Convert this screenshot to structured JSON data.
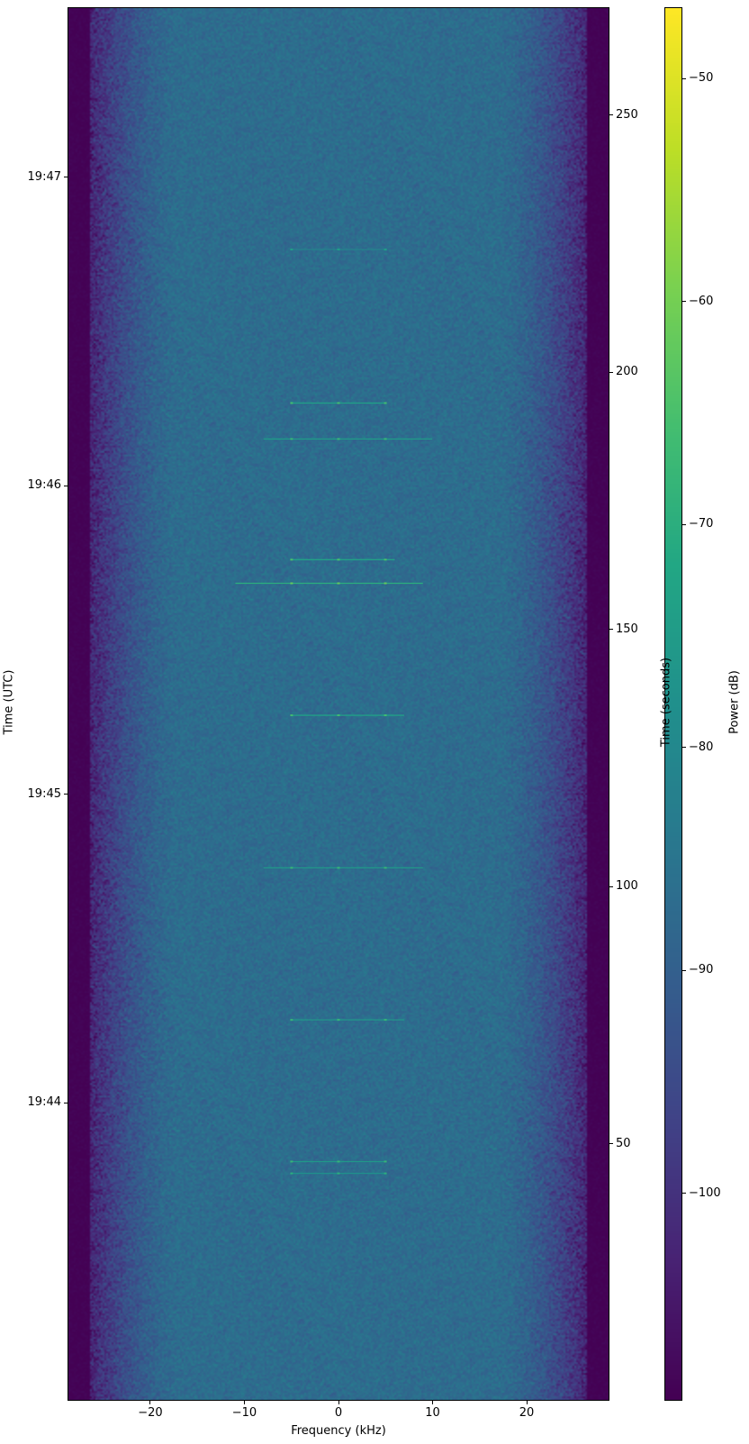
{
  "chart_data": {
    "type": "heatmap",
    "subtype": "spectrogram",
    "xlabel": "Frequency (kHz)",
    "ylabel_left": "Time (UTC)",
    "ylabel_right": "Time (seconds)",
    "colorbar_label": "Power (dB)",
    "colormap": "viridis",
    "xlim": [
      -28.8,
      28.8
    ],
    "ylim_seconds": [
      0,
      271
    ],
    "clim": [
      -109.3,
      -46.8
    ],
    "x_ticks": [
      -20,
      -10,
      0,
      10,
      20
    ],
    "x_tick_labels": [
      "−20",
      "−10",
      "0",
      "10",
      "20"
    ],
    "right_ticks": [
      50,
      100,
      150,
      200,
      250
    ],
    "right_tick_labels": [
      "50",
      "100",
      "150",
      "200",
      "250"
    ],
    "left_ticks_seconds": [
      57.9,
      117.9,
      177.9,
      237.9
    ],
    "left_tick_labels": [
      "19:44",
      "19:45",
      "19:46",
      "19:47"
    ],
    "colorbar_ticks": [
      -50,
      -60,
      -70,
      -80,
      -90,
      -100
    ],
    "colorbar_tick_labels": [
      "−50",
      "−60",
      "−70",
      "−80",
      "−90",
      "−100"
    ],
    "noise_floor_db": -87,
    "out_of_band_db": -109,
    "passband_edge_khz": 26.5,
    "bursts": [
      {
        "t": 224.0,
        "f_start": -5,
        "f_end": 5,
        "power_db": -82
      },
      {
        "t": 194.1,
        "f_start": -5,
        "f_end": 5,
        "power_db": -74
      },
      {
        "t": 187.1,
        "f_start": -8,
        "f_end": 10,
        "power_db": -76
      },
      {
        "t": 163.6,
        "f_start": -5,
        "f_end": 6,
        "power_db": -73
      },
      {
        "t": 159.0,
        "f_start": -11,
        "f_end": 9,
        "power_db": -70
      },
      {
        "t": 133.3,
        "f_start": -5,
        "f_end": 7,
        "power_db": -74
      },
      {
        "t": 103.6,
        "f_start": -8,
        "f_end": 9,
        "power_db": -76
      },
      {
        "t": 74.0,
        "f_start": -5,
        "f_end": 7,
        "power_db": -76
      },
      {
        "t": 46.4,
        "f_start": -5,
        "f_end": 5,
        "power_db": -76
      },
      {
        "t": 44.1,
        "f_start": -5,
        "f_end": 5,
        "power_db": -78
      }
    ]
  }
}
